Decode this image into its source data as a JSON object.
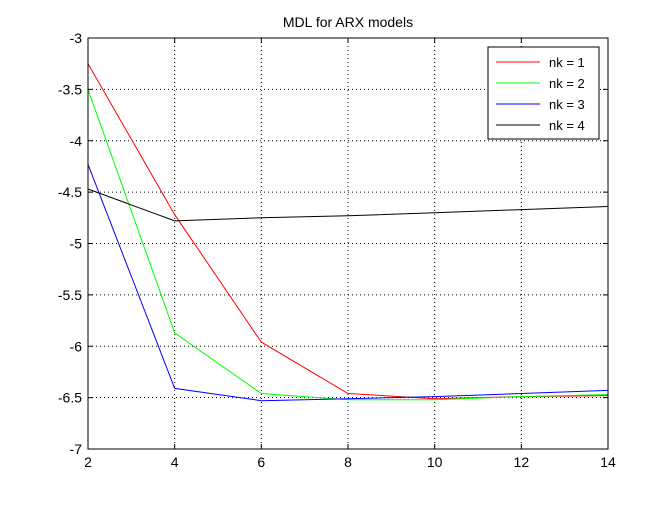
{
  "chart_data": {
    "type": "line",
    "title": "MDL for ARX models",
    "xlabel": "",
    "ylabel": "",
    "xlim": [
      2,
      14
    ],
    "ylim": [
      -7,
      -3
    ],
    "xticks": [
      2,
      4,
      6,
      8,
      10,
      12,
      14
    ],
    "yticks": [
      -3,
      -3.5,
      -4,
      -4.5,
      -5,
      -5.5,
      -6,
      -6.5,
      -7
    ],
    "grid": true,
    "legend_position": "top-right",
    "series": [
      {
        "name": "nk = 1",
        "color": "#ff0000",
        "x": [
          2,
          4,
          6,
          8,
          10,
          12,
          14
        ],
        "y": [
          -3.25,
          -4.72,
          -5.96,
          -6.46,
          -6.51,
          -6.49,
          -6.48
        ]
      },
      {
        "name": "nk = 2",
        "color": "#00ff00",
        "x": [
          2,
          4,
          6,
          8,
          10,
          12,
          14
        ],
        "y": [
          -3.5,
          -5.87,
          -6.46,
          -6.52,
          -6.52,
          -6.49,
          -6.47
        ]
      },
      {
        "name": "nk = 3",
        "color": "#0000ff",
        "x": [
          2,
          4,
          6,
          8,
          10,
          12,
          14
        ],
        "y": [
          -4.23,
          -6.41,
          -6.53,
          -6.51,
          -6.49,
          -6.46,
          -6.43
        ]
      },
      {
        "name": "nk = 4",
        "color": "#000000",
        "x": [
          2,
          4,
          6,
          8,
          10,
          12,
          14
        ],
        "y": [
          -4.47,
          -4.78,
          -4.75,
          -4.73,
          -4.7,
          -4.67,
          -4.64
        ]
      }
    ]
  }
}
